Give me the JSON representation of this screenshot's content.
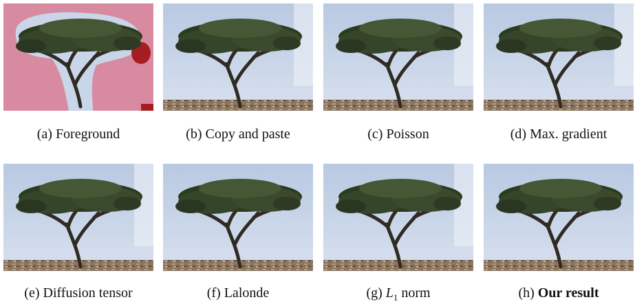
{
  "figure": {
    "panels": [
      {
        "label": "(a)",
        "text": "Foreground"
      },
      {
        "label": "(b)",
        "text": "Copy and paste"
      },
      {
        "label": "(c)",
        "text": "Poisson"
      },
      {
        "label": "(d)",
        "text": "Max. gradient"
      },
      {
        "label": "(e)",
        "text": "Diffusion tensor"
      },
      {
        "label": "(f)",
        "text": "Lalonde"
      },
      {
        "label": "(g)",
        "math": "L",
        "sub": "1",
        "text": "norm"
      },
      {
        "label": "(h)",
        "bold": "Our result"
      }
    ]
  }
}
